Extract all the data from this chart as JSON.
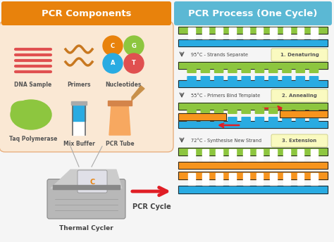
{
  "bg_color": "#f5f5f5",
  "left_header_color": "#E8820C",
  "right_header_color": "#5BB8D4",
  "left_header_text": "PCR Components",
  "right_header_text": "PCR Process (One Cycle)",
  "left_box_color": "#FAE8D4",
  "dna_dark": "#222222",
  "dna_green": "#8DC63F",
  "dna_blue": "#29ABE2",
  "dna_orange": "#F7941D",
  "step_box_color": "#FAFAC0",
  "arrow_red": "#E01E25",
  "pcr_cycle_text": "PCR Cycle",
  "thermal_cycler_text": "Thermal Cycler",
  "step_labels": [
    {
      "temp": "95°C",
      "desc": " - Strands Separate",
      "num": "1.",
      "name": "Denaturing"
    },
    {
      "temp": "55°C",
      "desc": " - Primers Bind Template",
      "num": "2.",
      "name": "Annealing"
    },
    {
      "temp": "72°C",
      "desc": " - Synthesise New Strand",
      "num": "3.",
      "name": "Extension"
    }
  ]
}
